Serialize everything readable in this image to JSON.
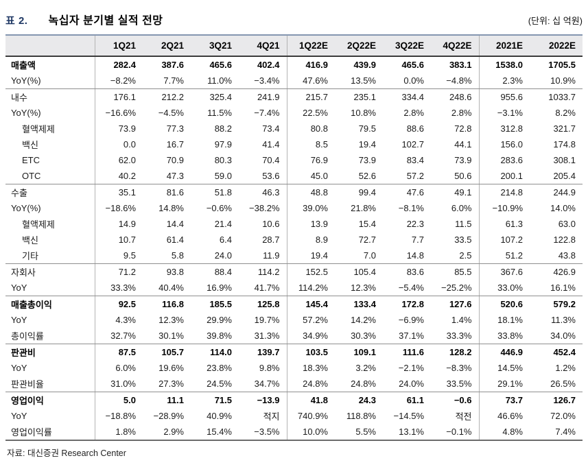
{
  "header": {
    "table_number": "표 2.",
    "title": "녹십자 분기별 실적 전망",
    "unit": "(단위: 십 억원)"
  },
  "table": {
    "columns": [
      "",
      "1Q21",
      "2Q21",
      "3Q21",
      "4Q21",
      "1Q22E",
      "2Q22E",
      "3Q22E",
      "4Q22E",
      "2021E",
      "2022E"
    ],
    "rows": [
      {
        "label": "매출액",
        "bold": true,
        "indent": false,
        "sep": false,
        "values": [
          "282.4",
          "387.6",
          "465.6",
          "402.4",
          "416.9",
          "439.9",
          "465.6",
          "383.1",
          "1538.0",
          "1705.5"
        ]
      },
      {
        "label": "YoY(%)",
        "bold": false,
        "indent": false,
        "sep": true,
        "values": [
          "−8.2%",
          "7.7%",
          "11.0%",
          "−3.4%",
          "47.6%",
          "13.5%",
          "0.0%",
          "−4.8%",
          "2.3%",
          "10.9%"
        ]
      },
      {
        "label": "내수",
        "bold": false,
        "indent": false,
        "sep": false,
        "values": [
          "176.1",
          "212.2",
          "325.4",
          "241.9",
          "215.7",
          "235.1",
          "334.4",
          "248.6",
          "955.6",
          "1033.7"
        ]
      },
      {
        "label": "YoY(%)",
        "bold": false,
        "indent": false,
        "sep": false,
        "values": [
          "−16.6%",
          "−4.5%",
          "11.5%",
          "−7.4%",
          "22.5%",
          "10.8%",
          "2.8%",
          "2.8%",
          "−3.1%",
          "8.2%"
        ]
      },
      {
        "label": "혈액제제",
        "bold": false,
        "indent": true,
        "sep": false,
        "values": [
          "73.9",
          "77.3",
          "88.2",
          "73.4",
          "80.8",
          "79.5",
          "88.6",
          "72.8",
          "312.8",
          "321.7"
        ]
      },
      {
        "label": "백신",
        "bold": false,
        "indent": true,
        "sep": false,
        "values": [
          "0.0",
          "16.7",
          "97.9",
          "41.4",
          "8.5",
          "19.4",
          "102.7",
          "44.1",
          "156.0",
          "174.8"
        ]
      },
      {
        "label": "ETC",
        "bold": false,
        "indent": true,
        "sep": false,
        "values": [
          "62.0",
          "70.9",
          "80.3",
          "70.4",
          "76.9",
          "73.9",
          "83.4",
          "73.9",
          "283.6",
          "308.1"
        ]
      },
      {
        "label": "OTC",
        "bold": false,
        "indent": true,
        "sep": true,
        "values": [
          "40.2",
          "47.3",
          "59.0",
          "53.6",
          "45.0",
          "52.6",
          "57.2",
          "50.6",
          "200.1",
          "205.4"
        ]
      },
      {
        "label": "수출",
        "bold": false,
        "indent": false,
        "sep": false,
        "values": [
          "35.1",
          "81.6",
          "51.8",
          "46.3",
          "48.8",
          "99.4",
          "47.6",
          "49.1",
          "214.8",
          "244.9"
        ]
      },
      {
        "label": "YoY(%)",
        "bold": false,
        "indent": false,
        "sep": false,
        "values": [
          "−18.6%",
          "14.8%",
          "−0.6%",
          "−38.2%",
          "39.0%",
          "21.8%",
          "−8.1%",
          "6.0%",
          "−10.9%",
          "14.0%"
        ]
      },
      {
        "label": "혈액제제",
        "bold": false,
        "indent": true,
        "sep": false,
        "values": [
          "14.9",
          "14.4",
          "21.4",
          "10.6",
          "13.9",
          "15.4",
          "22.3",
          "11.5",
          "61.3",
          "63.0"
        ]
      },
      {
        "label": "백신",
        "bold": false,
        "indent": true,
        "sep": false,
        "values": [
          "10.7",
          "61.4",
          "6.4",
          "28.7",
          "8.9",
          "72.7",
          "7.7",
          "33.5",
          "107.2",
          "122.8"
        ]
      },
      {
        "label": "기타",
        "bold": false,
        "indent": true,
        "sep": true,
        "values": [
          "9.5",
          "5.8",
          "24.0",
          "11.9",
          "19.4",
          "7.0",
          "14.8",
          "2.5",
          "51.2",
          "43.8"
        ]
      },
      {
        "label": "자회사",
        "bold": false,
        "indent": false,
        "sep": false,
        "values": [
          "71.2",
          "93.8",
          "88.4",
          "114.2",
          "152.5",
          "105.4",
          "83.6",
          "85.5",
          "367.6",
          "426.9"
        ]
      },
      {
        "label": "YoY",
        "bold": false,
        "indent": false,
        "sep": true,
        "values": [
          "33.3%",
          "40.4%",
          "16.9%",
          "41.7%",
          "114.2%",
          "12.3%",
          "−5.4%",
          "−25.2%",
          "33.0%",
          "16.1%"
        ]
      },
      {
        "label": "매출총이익",
        "bold": true,
        "indent": false,
        "sep": false,
        "values": [
          "92.5",
          "116.8",
          "185.5",
          "125.8",
          "145.4",
          "133.4",
          "172.8",
          "127.6",
          "520.6",
          "579.2"
        ]
      },
      {
        "label": "YoY",
        "bold": false,
        "indent": false,
        "sep": false,
        "values": [
          "4.3%",
          "12.3%",
          "29.9%",
          "19.7%",
          "57.2%",
          "14.2%",
          "−6.9%",
          "1.4%",
          "18.1%",
          "11.3%"
        ]
      },
      {
        "label": "총이익률",
        "bold": false,
        "indent": false,
        "sep": true,
        "values": [
          "32.7%",
          "30.1%",
          "39.8%",
          "31.3%",
          "34.9%",
          "30.3%",
          "37.1%",
          "33.3%",
          "33.8%",
          "34.0%"
        ]
      },
      {
        "label": "판관비",
        "bold": true,
        "indent": false,
        "sep": false,
        "values": [
          "87.5",
          "105.7",
          "114.0",
          "139.7",
          "103.5",
          "109.1",
          "111.6",
          "128.2",
          "446.9",
          "452.4"
        ]
      },
      {
        "label": "YoY",
        "bold": false,
        "indent": false,
        "sep": false,
        "values": [
          "6.0%",
          "19.6%",
          "23.8%",
          "9.8%",
          "18.3%",
          "3.2%",
          "−2.1%",
          "−8.3%",
          "14.5%",
          "1.2%"
        ]
      },
      {
        "label": "판관비율",
        "bold": false,
        "indent": false,
        "sep": true,
        "values": [
          "31.0%",
          "27.3%",
          "24.5%",
          "34.7%",
          "24.8%",
          "24.8%",
          "24.0%",
          "33.5%",
          "29.1%",
          "26.5%"
        ]
      },
      {
        "label": "영업이익",
        "bold": true,
        "indent": false,
        "sep": false,
        "values": [
          "5.0",
          "11.1",
          "71.5",
          "−13.9",
          "41.8",
          "24.3",
          "61.1",
          "−0.6",
          "73.7",
          "126.7"
        ]
      },
      {
        "label": "YoY",
        "bold": false,
        "indent": false,
        "sep": false,
        "values": [
          "−18.8%",
          "−28.9%",
          "40.9%",
          "적지",
          "740.9%",
          "118.8%",
          "−14.5%",
          "적전",
          "46.6%",
          "72.0%"
        ]
      },
      {
        "label": "영업이익률",
        "bold": false,
        "indent": false,
        "sep": false,
        "values": [
          "1.8%",
          "2.9%",
          "15.4%",
          "−3.5%",
          "10.0%",
          "5.5%",
          "13.1%",
          "−0.1%",
          "4.8%",
          "7.4%"
        ]
      }
    ]
  },
  "footer": {
    "source": "자료:  대신증권 Research Center"
  },
  "colors": {
    "title_accent": "#1f3864",
    "header_background": "#e9e9eb",
    "table_top_border": "#8496b0",
    "text": "#1a1a1a"
  }
}
